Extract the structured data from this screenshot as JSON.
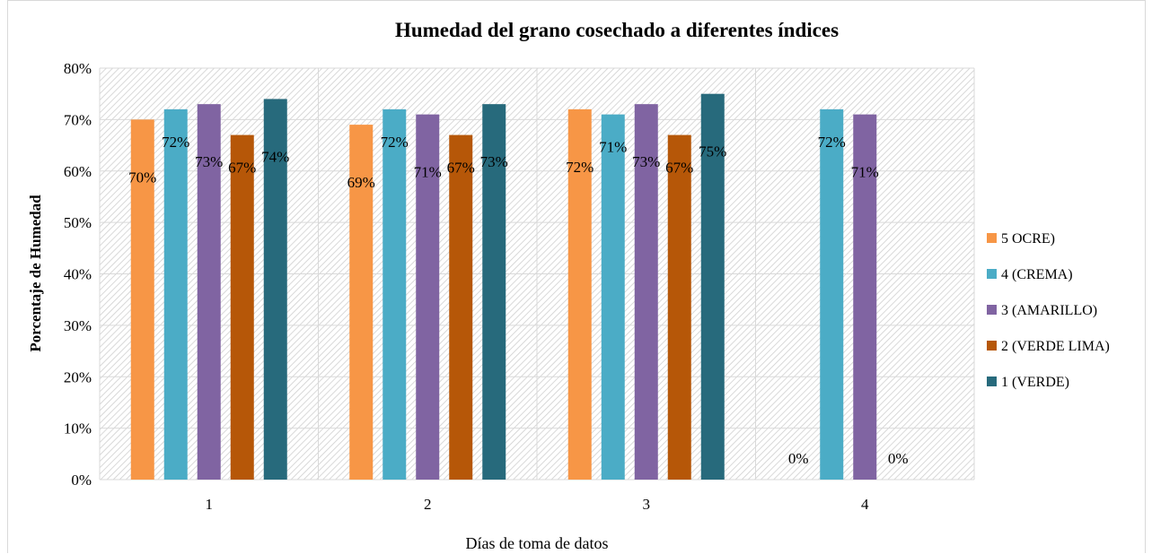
{
  "chart_data": {
    "type": "bar",
    "title": "Humedad  del grano cosechado a diferentes índices",
    "xlabel": "Días  de toma de datos",
    "ylabel": "Porcentaje de Humedad",
    "categories": [
      "1",
      "2",
      "3",
      "4"
    ],
    "y_ticks": [
      "0%",
      "10%",
      "20%",
      "30%",
      "40%",
      "50%",
      "60%",
      "70%",
      "80%"
    ],
    "ylim": [
      0,
      0.8
    ],
    "grid": true,
    "legend_position": "right",
    "series": [
      {
        "name": "5 OCRE)",
        "color": "#f79646",
        "values": [
          0.7,
          0.69,
          0.72,
          0
        ],
        "labels": [
          "70%",
          "69%",
          "72%",
          "0%"
        ]
      },
      {
        "name": "4 (CREMA)",
        "color": "#4bacc6",
        "values": [
          0.72,
          0.72,
          0.71,
          0.72
        ],
        "labels": [
          "72%",
          "72%",
          "71%",
          "72%"
        ]
      },
      {
        "name": "3 (AMARILLO)",
        "color": "#8064a2",
        "values": [
          0.73,
          0.71,
          0.73,
          0.71
        ],
        "labels": [
          "73%",
          "71%",
          "73%",
          "71%"
        ]
      },
      {
        "name": "2 (VERDE LIMA)",
        "color": "#b65708",
        "values": [
          0.67,
          0.67,
          0.67,
          0
        ],
        "labels": [
          "67%",
          "67%",
          "67%",
          "0%"
        ]
      },
      {
        "name": "1  (VERDE)",
        "color": "#276a7c",
        "values": [
          0.74,
          0.73,
          0.75,
          null
        ],
        "labels": [
          "74%",
          "73%",
          "75%",
          null
        ]
      }
    ]
  }
}
